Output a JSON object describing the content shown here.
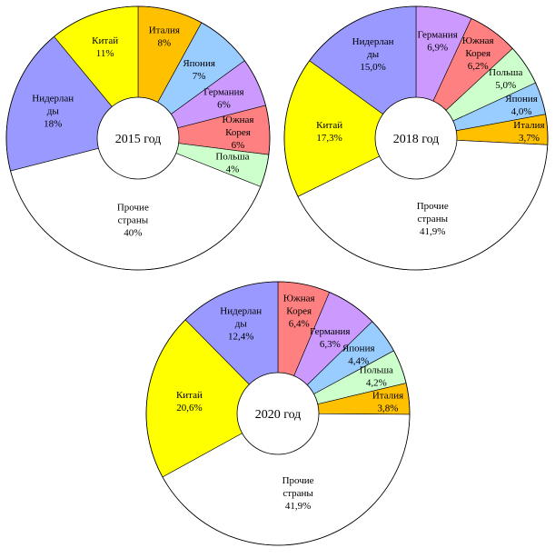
{
  "chart_data": [
    {
      "type": "pie",
      "center_label": "2015 год",
      "slices": [
        {
          "name": "Италия",
          "value": 8,
          "value_label": "8%",
          "color": "#ffc000"
        },
        {
          "name": "Япония",
          "value": 7,
          "value_label": "7%",
          "color": "#99ccff"
        },
        {
          "name": "Германия",
          "value": 6,
          "value_label": "6%",
          "color": "#cc99ff"
        },
        {
          "name": "Южная Корея",
          "value": 6,
          "value_label": "6%",
          "color": "#ff8080"
        },
        {
          "name": "Польша",
          "value": 4,
          "value_label": "4%",
          "color": "#ccffcc"
        },
        {
          "name": "Прочие страны",
          "value": 40,
          "value_label": "40%",
          "color": "#ffffff"
        },
        {
          "name": "Нидерланды",
          "value": 18,
          "value_label": "18%",
          "color": "#9999ff"
        },
        {
          "name": "Китай",
          "value": 11,
          "value_label": "11%",
          "color": "#ffff00"
        }
      ]
    },
    {
      "type": "pie",
      "center_label": "2018 год",
      "slices": [
        {
          "name": "Германия",
          "value": 6.9,
          "value_label": "6,9%",
          "color": "#cc99ff"
        },
        {
          "name": "Южная Корея",
          "value": 6.2,
          "value_label": "6,2%",
          "color": "#ff8080"
        },
        {
          "name": "Польша",
          "value": 5.0,
          "value_label": "5,0%",
          "color": "#ccffcc"
        },
        {
          "name": "Япония",
          "value": 4.0,
          "value_label": "4,0%",
          "color": "#99ccff"
        },
        {
          "name": "Италия",
          "value": 3.7,
          "value_label": "3,7%",
          "color": "#ffc000"
        },
        {
          "name": "Прочие страны",
          "value": 41.9,
          "value_label": "41,9%",
          "color": "#ffffff"
        },
        {
          "name": "Китай",
          "value": 17.3,
          "value_label": "17,3%",
          "color": "#ffff00"
        },
        {
          "name": "Нидерланды",
          "value": 15.0,
          "value_label": "15,0%",
          "color": "#9999ff"
        }
      ]
    },
    {
      "type": "pie",
      "center_label": "2020 год",
      "slices": [
        {
          "name": "Южная Корея",
          "value": 6.4,
          "value_label": "6,4%",
          "color": "#ff8080"
        },
        {
          "name": "Германия",
          "value": 6.3,
          "value_label": "6,3%",
          "color": "#cc99ff"
        },
        {
          "name": "Япония",
          "value": 4.4,
          "value_label": "4,4%",
          "color": "#99ccff"
        },
        {
          "name": "Польша",
          "value": 4.2,
          "value_label": "4,2%",
          "color": "#ccffcc"
        },
        {
          "name": "Италия",
          "value": 3.8,
          "value_label": "3,8%",
          "color": "#ffc000"
        },
        {
          "name": "Прочие страны",
          "value": 41.9,
          "value_label": "41,9%",
          "color": "#ffffff"
        },
        {
          "name": "Китай",
          "value": 20.6,
          "value_label": "20,6%",
          "color": "#ffff00"
        },
        {
          "name": "Нидерланды",
          "value": 12.4,
          "value_label": "12,4%",
          "color": "#9999ff"
        }
      ]
    }
  ]
}
